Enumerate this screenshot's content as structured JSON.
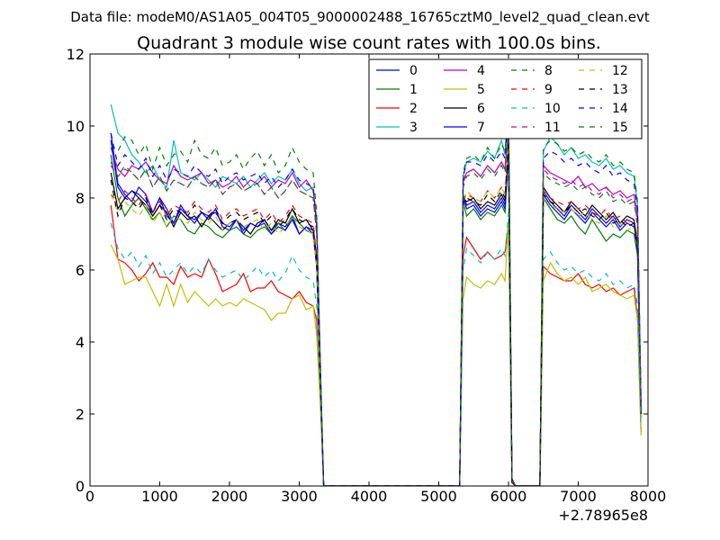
{
  "figure": {
    "suptitle": "Data file: modeM0/AS1A05_004T05_9000002488_16765cztM0_level2_quad_clean.evt",
    "title": "Quadrant 3 module wise count rates with 100.0s bins.",
    "x_offset_label": "+2.78965e8"
  },
  "chart_data": {
    "type": "line",
    "title": "Quadrant 3 module wise count rates with 100.0s bins.",
    "xlabel": "",
    "ylabel": "",
    "xlim": [
      0,
      8000
    ],
    "ylim": [
      0,
      12
    ],
    "xticks": [
      0,
      1000,
      2000,
      3000,
      4000,
      5000,
      6000,
      7000,
      8000
    ],
    "yticks": [
      0,
      2,
      4,
      6,
      8,
      10,
      12
    ],
    "grid": false,
    "legend_placement": "top-right",
    "legend_columns": 4,
    "series": [
      {
        "name": "0",
        "color": "#0000ff",
        "dash": "solid",
        "values": [
          9.8,
          8.4,
          8.1,
          7.9,
          8.3,
          8.1,
          7.6,
          8.0,
          7.7,
          7.3,
          7.8,
          7.5,
          7.3,
          7.6,
          7.4,
          7.7,
          7.2,
          7.1,
          7.4,
          7.0,
          7.3,
          7.2,
          7.4,
          7.1,
          7.3,
          7.2,
          7.5,
          7.0,
          7.2,
          7.1,
          6.2,
          3.1,
          0,
          0,
          8.1,
          7.8,
          7.9,
          7.6,
          7.8,
          7.7,
          8.0,
          7.8,
          9.5,
          0.1,
          0,
          0,
          8.2,
          7.9,
          7.7,
          7.5,
          7.8,
          7.6,
          7.4,
          7.7,
          7.5,
          7.3,
          7.5,
          7.2,
          7.4,
          7.3,
          6.6,
          2.0
        ]
      },
      {
        "name": "1",
        "color": "#008000",
        "dash": "solid",
        "values": [
          9.2,
          8.0,
          7.5,
          7.8,
          8.0,
          7.7,
          7.4,
          7.6,
          7.2,
          7.5,
          7.4,
          7.1,
          7.0,
          7.3,
          7.2,
          7.0,
          6.9,
          7.1,
          7.2,
          7.0,
          6.9,
          7.1,
          7.2,
          7.0,
          7.3,
          7.1,
          7.5,
          7.3,
          7.1,
          7.0,
          6.1,
          3.0,
          0,
          0,
          7.9,
          7.5,
          7.7,
          7.4,
          7.6,
          7.5,
          7.8,
          7.6,
          9.2,
          0.1,
          0,
          0,
          8.0,
          7.7,
          7.4,
          7.3,
          7.5,
          7.2,
          7.0,
          7.4,
          7.1,
          6.8,
          7.0,
          6.9,
          7.1,
          7.0,
          6.4,
          1.9
        ]
      },
      {
        "name": "2",
        "color": "#ff0000",
        "dash": "solid",
        "values": [
          7.8,
          6.3,
          6.2,
          6.0,
          5.7,
          5.9,
          6.2,
          5.8,
          5.8,
          5.6,
          6.1,
          5.8,
          5.9,
          5.8,
          6.3,
          5.9,
          5.4,
          5.5,
          5.6,
          5.9,
          5.4,
          5.5,
          5.5,
          5.7,
          5.4,
          5.3,
          5.2,
          5.4,
          5.1,
          5.0,
          4.6,
          2.5,
          0,
          0,
          6.4,
          6.9,
          6.6,
          6.3,
          6.5,
          6.3,
          6.4,
          6.5,
          7.3,
          0.1,
          0,
          0,
          6.1,
          5.9,
          5.8,
          5.7,
          5.7,
          5.9,
          5.6,
          5.5,
          5.6,
          5.4,
          5.5,
          5.3,
          5.4,
          5.5,
          4.7,
          1.5
        ]
      },
      {
        "name": "3",
        "color": "#00bfbf",
        "dash": "solid",
        "values": [
          10.6,
          9.8,
          9.6,
          9.2,
          9.0,
          8.7,
          8.9,
          8.5,
          8.3,
          9.6,
          8.7,
          8.6,
          8.5,
          8.7,
          8.5,
          8.3,
          8.6,
          8.5,
          8.4,
          8.6,
          8.3,
          8.5,
          8.7,
          8.4,
          8.6,
          8.5,
          8.8,
          8.4,
          8.2,
          8.3,
          7.2,
          3.5,
          0,
          0,
          8.6,
          9.0,
          9.1,
          9.0,
          9.3,
          9.1,
          9.6,
          9.2,
          10.9,
          0.2,
          0,
          0,
          9.3,
          9.7,
          9.5,
          9.2,
          9.4,
          9.1,
          9.2,
          9.0,
          8.9,
          9.1,
          8.8,
          8.9,
          8.7,
          8.6,
          7.8,
          2.3
        ]
      },
      {
        "name": "4",
        "color": "#bf00bf",
        "dash": "solid",
        "values": [
          9.4,
          8.8,
          8.6,
          8.9,
          8.8,
          9.0,
          8.7,
          8.5,
          8.4,
          8.9,
          8.6,
          8.5,
          8.6,
          8.7,
          8.4,
          8.5,
          8.3,
          8.4,
          8.6,
          8.3,
          8.5,
          8.4,
          8.6,
          8.3,
          8.5,
          8.4,
          8.7,
          8.3,
          8.5,
          8.2,
          7.4,
          3.4,
          0,
          0,
          8.5,
          8.7,
          8.8,
          8.6,
          8.9,
          8.7,
          9.0,
          8.8,
          10.1,
          0.2,
          0,
          0,
          8.9,
          8.7,
          8.6,
          8.5,
          8.4,
          8.6,
          8.3,
          8.4,
          8.2,
          8.3,
          8.1,
          8.2,
          8.0,
          8.1,
          7.5,
          2.2
        ]
      },
      {
        "name": "5",
        "color": "#bfbf00",
        "dash": "solid",
        "values": [
          6.7,
          6.3,
          5.6,
          5.7,
          5.8,
          5.8,
          5.4,
          5.0,
          5.6,
          5.0,
          5.6,
          5.1,
          5.4,
          5.2,
          5.0,
          5.2,
          5.0,
          5.1,
          5.0,
          5.2,
          5.1,
          5.0,
          4.9,
          4.6,
          4.8,
          4.8,
          5.2,
          5.3,
          4.9,
          5.0,
          4.2,
          2.3,
          0,
          0,
          5.2,
          5.8,
          5.6,
          5.5,
          5.7,
          5.6,
          5.9,
          5.7,
          7.4,
          0.1,
          0,
          0,
          5.7,
          6.2,
          5.9,
          5.7,
          5.8,
          5.6,
          5.8,
          5.4,
          5.5,
          5.6,
          5.4,
          5.3,
          5.2,
          5.3,
          4.6,
          1.4
        ]
      },
      {
        "name": "6",
        "color": "#000000",
        "dash": "solid",
        "values": [
          8.7,
          7.7,
          8.0,
          8.2,
          8.0,
          7.8,
          7.5,
          7.8,
          7.6,
          7.2,
          7.6,
          7.4,
          7.5,
          7.2,
          7.5,
          7.3,
          7.1,
          7.3,
          7.4,
          7.2,
          7.0,
          7.3,
          7.4,
          7.1,
          7.4,
          7.3,
          7.7,
          7.3,
          7.4,
          7.1,
          6.2,
          3.1,
          0,
          0,
          8.0,
          7.9,
          8.0,
          7.7,
          7.9,
          7.8,
          8.1,
          7.9,
          9.4,
          0.1,
          0,
          0,
          8.3,
          8.0,
          7.8,
          7.6,
          7.9,
          7.7,
          7.5,
          7.8,
          7.6,
          7.4,
          7.6,
          7.3,
          7.5,
          7.4,
          6.7,
          2.0
        ]
      },
      {
        "name": "7",
        "color": "#0000ff",
        "dash": "solid",
        "values": [
          9.6,
          8.3,
          8.0,
          8.2,
          8.1,
          7.9,
          7.6,
          8.0,
          7.5,
          7.3,
          7.7,
          7.5,
          7.4,
          7.6,
          7.5,
          7.6,
          7.3,
          7.2,
          7.4,
          7.1,
          7.3,
          7.2,
          7.3,
          7.0,
          7.2,
          7.1,
          7.4,
          7.0,
          7.2,
          7.0,
          6.1,
          3.0,
          0,
          0,
          8.0,
          7.7,
          7.8,
          7.5,
          7.7,
          7.6,
          7.9,
          7.7,
          9.3,
          0.1,
          0,
          0,
          8.1,
          7.8,
          7.6,
          7.4,
          7.7,
          7.5,
          7.3,
          7.6,
          7.4,
          7.2,
          7.4,
          7.1,
          7.3,
          7.2,
          6.5,
          1.9
        ]
      },
      {
        "name": "8",
        "color": "#008000",
        "dash": "dashed",
        "values": [
          9.5,
          9.3,
          9.7,
          9.6,
          9.2,
          9.5,
          8.8,
          9.4,
          8.9,
          9.2,
          9.3,
          9.0,
          9.6,
          9.2,
          9.1,
          9.4,
          8.9,
          9.0,
          9.2,
          8.8,
          9.1,
          9.3,
          8.9,
          9.2,
          8.7,
          8.9,
          9.4,
          9.0,
          8.8,
          8.7,
          7.6,
          3.6,
          0,
          0,
          8.7,
          9.1,
          9.2,
          9.0,
          9.4,
          9.1,
          9.5,
          9.3,
          10.7,
          0.2,
          0,
          0,
          9.4,
          9.6,
          9.5,
          9.3,
          9.4,
          9.2,
          9.3,
          9.1,
          9.0,
          9.2,
          8.9,
          9.0,
          8.8,
          8.7,
          7.9,
          2.3
        ]
      },
      {
        "name": "9",
        "color": "#ff0000",
        "dash": "dashed",
        "values": [
          8.1,
          7.9,
          8.2,
          8.0,
          7.8,
          8.1,
          7.6,
          7.9,
          7.5,
          7.8,
          7.7,
          7.6,
          7.9,
          7.7,
          7.6,
          7.8,
          7.4,
          7.6,
          7.7,
          7.5,
          7.6,
          7.7,
          7.4,
          7.6,
          7.3,
          7.5,
          7.8,
          7.5,
          7.4,
          7.3,
          6.4,
          3.2,
          0,
          0,
          8.0,
          8.1,
          8.0,
          7.9,
          8.2,
          8.0,
          8.3,
          8.1,
          9.8,
          0.2,
          0,
          0,
          8.2,
          8.0,
          7.9,
          7.8,
          7.9,
          7.7,
          7.8,
          7.6,
          7.5,
          7.7,
          7.4,
          7.5,
          7.3,
          7.4,
          6.8,
          2.1
        ]
      },
      {
        "name": "10",
        "color": "#00bfbf",
        "dash": "dashed",
        "values": [
          7.3,
          6.6,
          6.3,
          6.5,
          6.1,
          6.4,
          5.9,
          6.2,
          5.8,
          6.0,
          6.2,
          5.9,
          6.1,
          5.9,
          6.3,
          6.0,
          5.8,
          5.9,
          6.0,
          5.7,
          5.9,
          6.1,
          5.8,
          6.0,
          5.7,
          5.9,
          6.4,
          6.0,
          5.8,
          5.7,
          5.0,
          2.7,
          0,
          0,
          6.0,
          6.6,
          6.4,
          6.2,
          6.5,
          6.3,
          6.6,
          6.4,
          7.6,
          0.1,
          0,
          0,
          6.3,
          6.5,
          6.2,
          6.0,
          6.1,
          5.9,
          6.0,
          5.8,
          5.7,
          5.9,
          5.6,
          5.7,
          5.5,
          5.6,
          5.0,
          1.6
        ]
      },
      {
        "name": "11",
        "color": "#bf00bf",
        "dash": "dashed",
        "values": [
          8.9,
          8.6,
          8.8,
          8.7,
          8.5,
          8.8,
          8.3,
          8.6,
          8.2,
          8.5,
          8.4,
          8.3,
          8.6,
          8.4,
          8.3,
          8.5,
          8.1,
          8.3,
          8.4,
          8.2,
          8.3,
          8.4,
          8.1,
          8.3,
          8.0,
          8.2,
          8.5,
          8.2,
          8.1,
          8.0,
          7.0,
          3.4,
          0,
          0,
          8.4,
          8.7,
          8.8,
          8.6,
          8.9,
          8.7,
          9.0,
          8.8,
          10.2,
          0.2,
          0,
          0,
          8.8,
          8.6,
          8.5,
          8.4,
          8.5,
          8.3,
          8.4,
          8.2,
          8.1,
          8.3,
          8.0,
          8.1,
          7.9,
          8.0,
          7.3,
          2.2
        ]
      },
      {
        "name": "12",
        "color": "#bfbf00",
        "dash": "dashed",
        "values": [
          8.1,
          7.6,
          7.9,
          7.7,
          7.5,
          7.8,
          7.3,
          7.6,
          7.2,
          7.5,
          7.4,
          7.3,
          7.6,
          7.4,
          7.3,
          7.5,
          7.1,
          7.3,
          7.4,
          7.2,
          7.3,
          7.4,
          7.1,
          7.3,
          7.0,
          7.2,
          7.5,
          7.2,
          7.1,
          7.0,
          6.1,
          3.0,
          0,
          0,
          7.7,
          8.2,
          8.0,
          7.9,
          8.2,
          8.0,
          8.3,
          8.1,
          9.5,
          0.1,
          0,
          0,
          8.0,
          7.8,
          7.7,
          7.6,
          7.7,
          7.5,
          7.6,
          7.4,
          7.3,
          7.5,
          7.2,
          7.3,
          7.1,
          7.2,
          6.6,
          1.9
        ]
      },
      {
        "name": "13",
        "color": "#000000",
        "dash": "dashed",
        "values": [
          8.5,
          7.5,
          8.0,
          7.9,
          7.7,
          8.0,
          7.5,
          7.8,
          7.4,
          7.7,
          7.6,
          7.5,
          7.8,
          7.6,
          7.5,
          7.7,
          7.3,
          7.5,
          7.6,
          7.4,
          7.5,
          7.6,
          7.3,
          7.5,
          7.2,
          7.4,
          7.7,
          7.4,
          7.3,
          7.2,
          6.3,
          3.1,
          0,
          0,
          7.9,
          8.0,
          7.9,
          7.8,
          8.1,
          7.9,
          8.2,
          8.0,
          9.6,
          0.1,
          0,
          0,
          8.1,
          7.9,
          7.8,
          7.6,
          7.8,
          7.6,
          7.7,
          7.5,
          7.4,
          7.6,
          7.3,
          7.4,
          7.2,
          7.3,
          6.7,
          2.0
        ]
      },
      {
        "name": "14",
        "color": "#0000ff",
        "dash": "dashed",
        "values": [
          9.8,
          8.9,
          9.2,
          9.0,
          8.8,
          9.1,
          8.6,
          8.9,
          8.5,
          8.8,
          8.7,
          8.6,
          8.9,
          8.7,
          8.6,
          8.8,
          8.4,
          8.6,
          8.7,
          8.5,
          8.6,
          8.7,
          8.4,
          8.6,
          8.3,
          8.5,
          8.8,
          8.5,
          8.4,
          8.3,
          7.3,
          3.5,
          0,
          0,
          8.6,
          9.0,
          9.0,
          8.9,
          9.2,
          9.0,
          9.3,
          9.1,
          10.5,
          0.2,
          0,
          0,
          9.1,
          9.3,
          9.2,
          9.0,
          9.1,
          8.9,
          9.0,
          8.8,
          8.7,
          8.9,
          8.6,
          8.7,
          8.5,
          8.4,
          7.7,
          2.3
        ]
      },
      {
        "name": "15",
        "color": "#008000",
        "dash": "dashed",
        "values": [
          9.0,
          8.6,
          8.9,
          8.7,
          8.5,
          8.8,
          8.3,
          8.6,
          8.2,
          8.5,
          8.4,
          8.3,
          8.6,
          8.4,
          8.3,
          8.5,
          8.1,
          8.3,
          8.4,
          8.2,
          8.3,
          8.4,
          8.1,
          8.3,
          8.0,
          8.2,
          8.5,
          8.2,
          8.1,
          8.0,
          7.0,
          3.4,
          0,
          0,
          8.3,
          8.6,
          8.7,
          8.5,
          8.8,
          8.6,
          8.9,
          8.7,
          10.1,
          0.2,
          0,
          0,
          8.7,
          8.5,
          8.4,
          8.3,
          8.4,
          8.2,
          8.3,
          8.1,
          8.0,
          8.2,
          7.9,
          8.0,
          7.8,
          7.9,
          7.2,
          2.2
        ]
      }
    ],
    "x": [
      300,
      400,
      500,
      600,
      700,
      800,
      900,
      1000,
      1100,
      1200,
      1300,
      1400,
      1500,
      1600,
      1700,
      1800,
      1900,
      2000,
      2100,
      2200,
      2300,
      2400,
      2500,
      2600,
      2700,
      2800,
      2900,
      3000,
      3100,
      3200,
      3250,
      3300,
      3350,
      5300,
      5350,
      5400,
      5500,
      5600,
      5700,
      5800,
      5900,
      5950,
      6000,
      6050,
      6100,
      6450,
      6500,
      6600,
      6700,
      6800,
      6900,
      7000,
      7100,
      7200,
      7300,
      7400,
      7500,
      7600,
      7700,
      7800,
      7850,
      7900
    ]
  }
}
